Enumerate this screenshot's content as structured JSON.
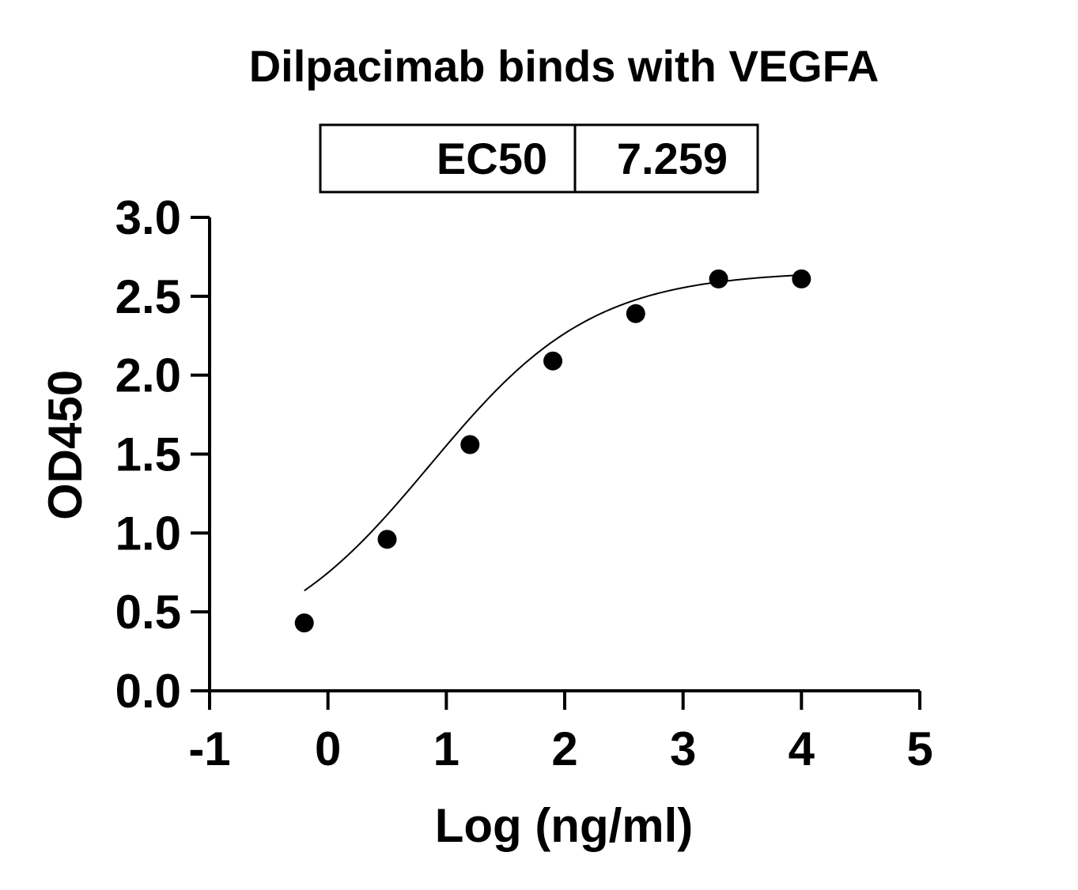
{
  "chart_data": {
    "type": "scatter",
    "title": "Dilpacimab binds with VEGFA",
    "xlabel": "Log (ng/ml)",
    "ylabel": "OD450",
    "xlim": [
      -1,
      5
    ],
    "ylim": [
      0,
      3
    ],
    "x_ticks": [
      "-1",
      "0",
      "1",
      "2",
      "3",
      "4",
      "5"
    ],
    "y_ticks": [
      "0.0",
      "0.5",
      "1.0",
      "1.5",
      "2.0",
      "2.5",
      "3.0"
    ],
    "grid": false,
    "legend": "none",
    "series": [
      {
        "x": [
          -0.2,
          0.5,
          1.2,
          1.9,
          2.6,
          3.3,
          4.0
        ],
        "y": [
          0.43,
          0.96,
          1.56,
          2.09,
          2.39,
          2.61,
          2.61
        ],
        "fit": {
          "model": "4PL",
          "bottom": 0.2,
          "top": 2.66,
          "logEC50": 0.861,
          "hill": 0.63
        }
      }
    ],
    "results_table": {
      "label": "EC50",
      "value": "7.259"
    },
    "colors": {
      "ink": "#000000",
      "background": "#ffffff"
    }
  }
}
